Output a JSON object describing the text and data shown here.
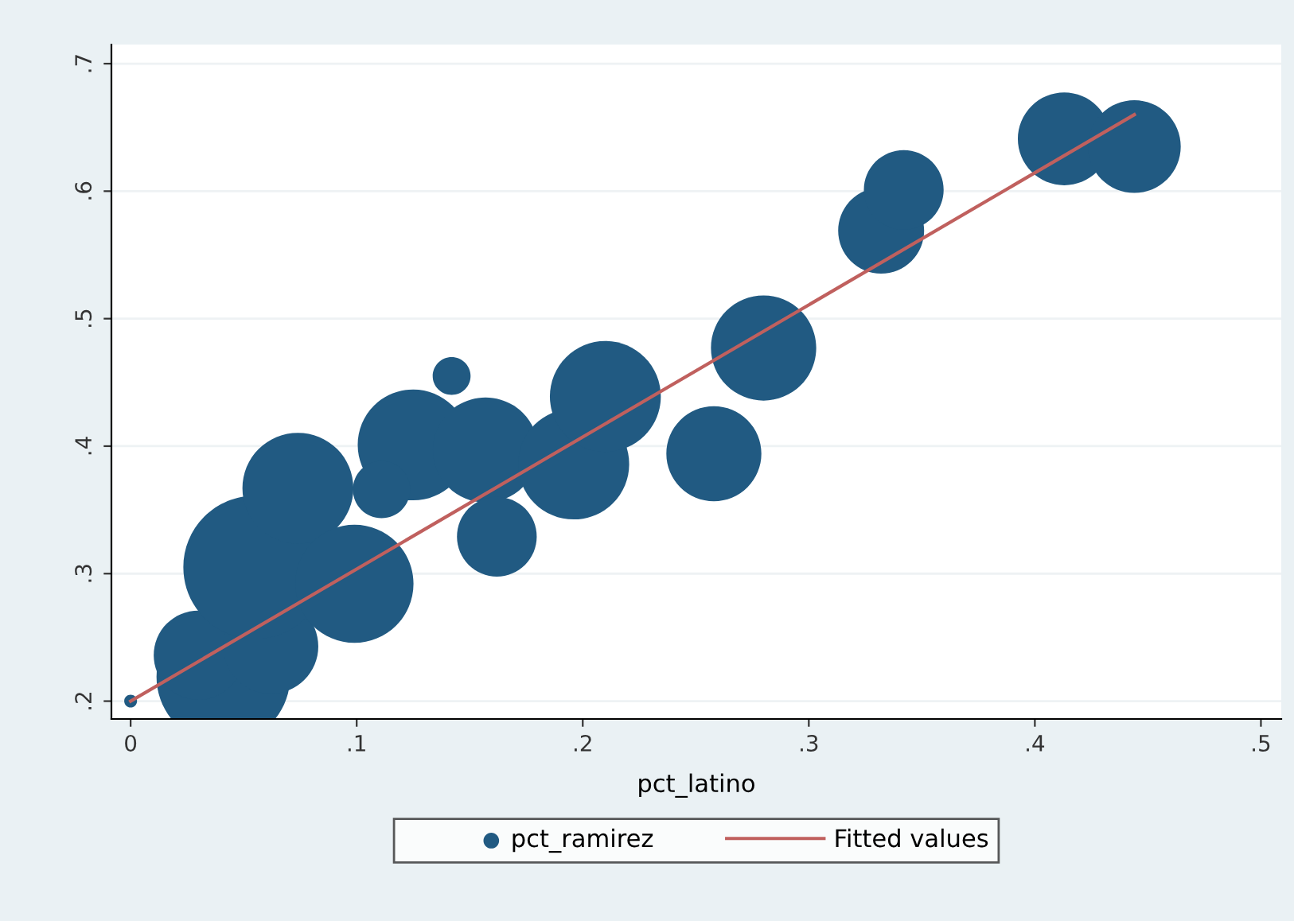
{
  "chart_data": {
    "type": "bubble",
    "xlabel": "pct_latino",
    "xlim": [
      -0.0085,
      0.509
    ],
    "xticks": [
      {
        "value": 0,
        "label": "0"
      },
      {
        "value": 0.1,
        "label": ".1"
      },
      {
        "value": 0.2,
        "label": ".2"
      },
      {
        "value": 0.3,
        "label": ".3"
      },
      {
        "value": 0.4,
        "label": ".4"
      },
      {
        "value": 0.5,
        "label": ".5"
      }
    ],
    "ylim": [
      0.186,
      0.715
    ],
    "yticks": [
      {
        "value": 0.2,
        "label": ".2"
      },
      {
        "value": 0.3,
        "label": ".3"
      },
      {
        "value": 0.4,
        "label": ".4"
      },
      {
        "value": 0.5,
        "label": ".5"
      },
      {
        "value": 0.6,
        "label": ".6"
      },
      {
        "value": 0.7,
        "label": ".7"
      }
    ],
    "grid": "y",
    "legend": "bottom",
    "series": [
      {
        "name": "pct_ramirez",
        "color": "#215a82",
        "x": [
          0,
          0.041,
          0.03,
          0.062,
          0.055,
          0.074,
          0.099,
          0.125,
          0.142,
          0.157,
          0.162,
          0.196,
          0.21,
          0.111,
          0.28,
          0.258,
          0.332,
          0.342,
          0.413,
          0.444
        ],
        "values": [
          0.2,
          0.219,
          0.236,
          0.243,
          0.305,
          0.367,
          0.292,
          0.401,
          0.455,
          0.397,
          0.329,
          0.386,
          0.439,
          0.366,
          0.477,
          0.394,
          0.569,
          0.601,
          0.641,
          0.635
        ],
        "sizes": [
          0.008,
          0.87,
          0.39,
          0.44,
          1,
          0.6,
          0.68,
          0.6,
          0.07,
          0.54,
          0.31,
          0.6,
          0.6,
          0.16,
          0.54,
          0.44,
          0.36,
          0.31,
          0.42,
          0.42
        ]
      },
      {
        "name": "Fitted values",
        "type": "line",
        "color": "#c0605e",
        "x": [
          0,
          0.444
        ],
        "values": [
          0.2,
          0.66
        ]
      }
    ]
  }
}
